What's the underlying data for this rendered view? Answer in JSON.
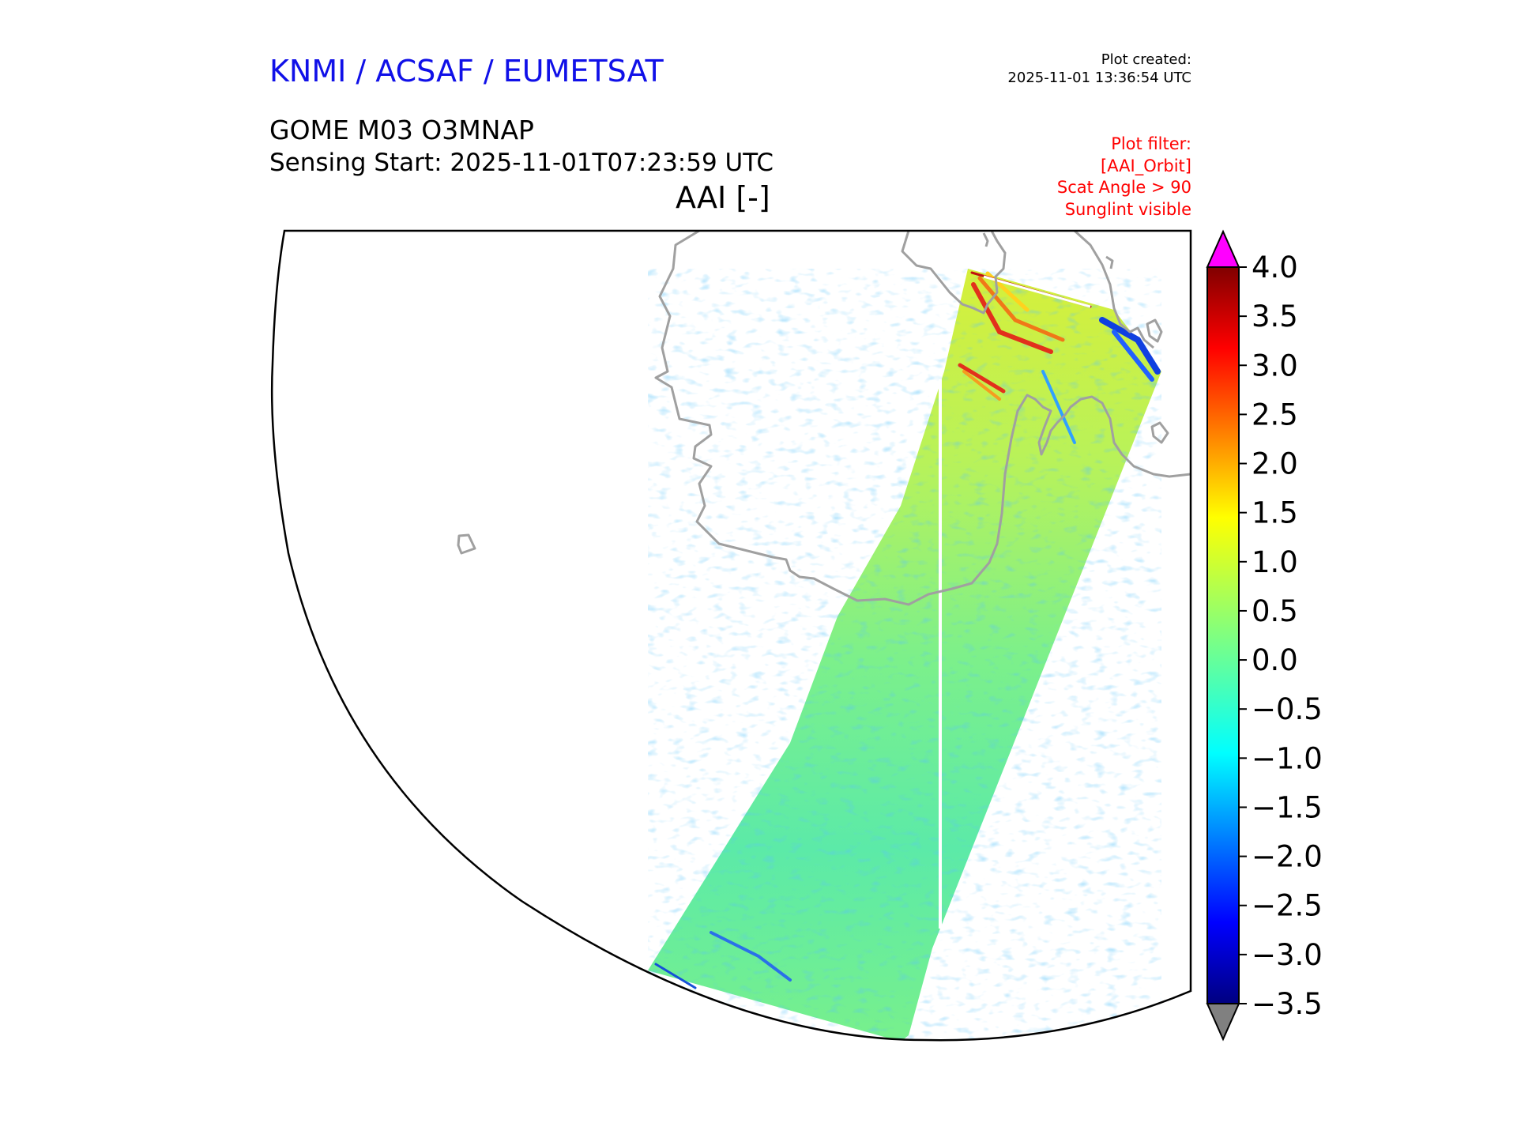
{
  "header": {
    "title": "KNMI / ACSAF / EUMETSAT",
    "created_label": "Plot created:",
    "created_time": "2025-11-01 13:36:54 UTC",
    "product": "GOME M03 O3MNAP",
    "sensing_start": "Sensing Start: 2025-11-01T07:23:59 UTC",
    "variable": "AAI [-]"
  },
  "filters": [
    "Plot filter:",
    "[AAI_Orbit]",
    "Scat Angle > 90",
    "Sunglint visible"
  ],
  "colorbar": {
    "min": -3.5,
    "max": 4.0,
    "ticks": [
      "4.0",
      "3.5",
      "3.0",
      "2.5",
      "2.0",
      "1.5",
      "1.0",
      "0.5",
      "0.0",
      "−0.5",
      "−1.0",
      "−1.5",
      "−2.0",
      "−2.5",
      "−3.0",
      "−3.5"
    ],
    "over_color": "#ff00ff",
    "under_color": "#808080",
    "colormap": "jet"
  },
  "map": {
    "coastline_color": "#a0a0a0",
    "frame_color": "#000000",
    "swath_dominant_value_range": [
      -1.0,
      1.0
    ]
  }
}
